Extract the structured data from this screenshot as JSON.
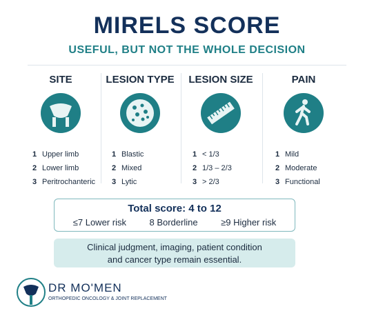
{
  "header": {
    "title": "MIRELS SCORE",
    "subtitle": "USEFUL, BUT NOT THE WHOLE DECISION"
  },
  "columns": [
    {
      "title": "SITE",
      "items": [
        {
          "score": 1,
          "label": "Upper limb"
        },
        {
          "score": 2,
          "label": "Lower limb"
        },
        {
          "score": 3,
          "label": "Peritrochanteric"
        }
      ]
    },
    {
      "title": "LESION TYPE",
      "items": [
        {
          "score": 1,
          "label": "Blastic"
        },
        {
          "score": 2,
          "label": "Mixed"
        },
        {
          "score": 3,
          "label": "Lytic"
        }
      ]
    },
    {
      "title": "LESION SIZE",
      "items": [
        {
          "score": 1,
          "label": "< 1/3"
        },
        {
          "score": 2,
          "label": "1/3 – 2/3"
        },
        {
          "score": 3,
          "label": "> 2/3"
        }
      ]
    },
    {
      "title": "PAIN",
      "items": [
        {
          "score": 1,
          "label": "Mild"
        },
        {
          "score": 2,
          "label": "Moderate"
        },
        {
          "score": 3,
          "label": "Functional"
        }
      ]
    }
  ],
  "total": {
    "title": "Total score: 4 to 12",
    "ranges": [
      "≤7 Lower risk",
      "8 Borderline",
      "≥9 Higher risk"
    ]
  },
  "note": {
    "lines": [
      "Clinical judgment, imaging, patient condition",
      "and cancer type remain essential."
    ]
  },
  "brand": {
    "name": "DR MO'MEN",
    "tagline": "ORTHOPEDIC ONCOLOGY & JOINT REPLACEMENT"
  }
}
